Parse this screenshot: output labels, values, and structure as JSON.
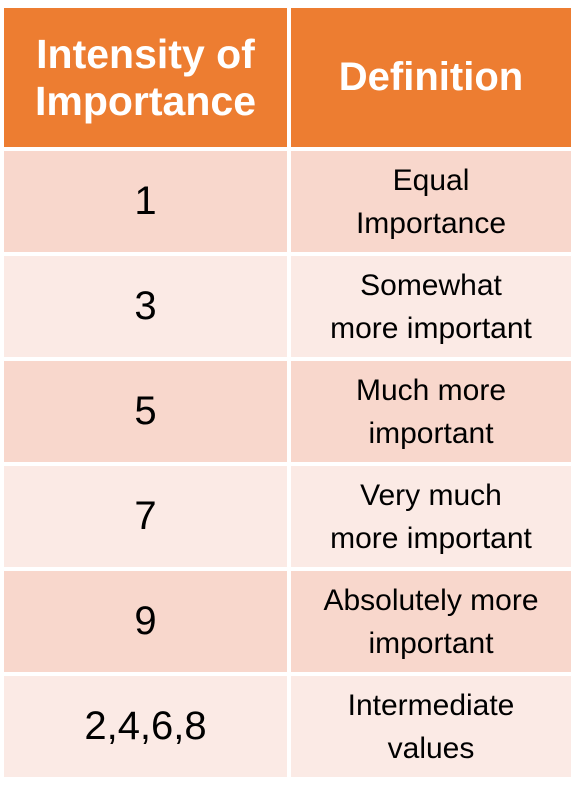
{
  "table": {
    "headers": {
      "intensity": "Intensity of Importance",
      "definition": "Definition"
    },
    "rows": [
      {
        "value": "1",
        "definition_line1": "Equal",
        "definition_line2": "Importance"
      },
      {
        "value": "3",
        "definition_line1": "Somewhat",
        "definition_line2": "more important"
      },
      {
        "value": "5",
        "definition_line1": "Much more",
        "definition_line2": "important"
      },
      {
        "value": "7",
        "definition_line1": "Very much",
        "definition_line2": "more important"
      },
      {
        "value": "9",
        "definition_line1": "Absolutely more",
        "definition_line2": "important"
      },
      {
        "value": "2,4,6,8",
        "definition_line1": "Intermediate",
        "definition_line2": "values"
      }
    ]
  },
  "colors": {
    "header_bg": "#ed7d31",
    "header_text": "#ffffff",
    "row_odd_bg": "#f8d7cc",
    "row_even_bg": "#fbeae5"
  }
}
